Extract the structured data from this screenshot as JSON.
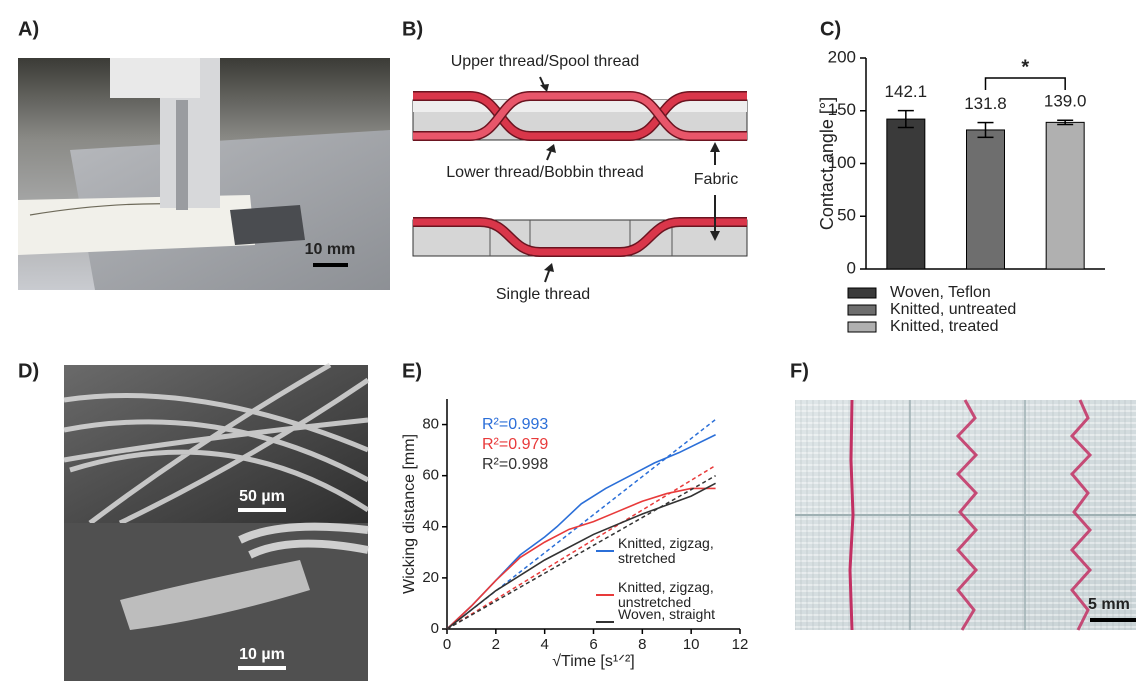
{
  "panel_labels": [
    "A)",
    "B)",
    "C)",
    "D)",
    "E)",
    "F)"
  ],
  "scale_bars": {
    "a": "10 mm",
    "d_top": "50 µm",
    "d_bottom": "10 µm",
    "f": "5 mm"
  },
  "diagram": {
    "upper": "Upper thread/Spool thread",
    "lower": "Lower thread/Bobbin thread",
    "fabric": "Fabric",
    "single": "Single thread"
  },
  "chart_data": [
    {
      "type": "bar",
      "ylabel": "Contact angle [°]",
      "categories": [
        "Woven, Teflon",
        "Knitted, untreated",
        "Knitted, treated"
      ],
      "values": [
        142.1,
        131.8,
        139.0
      ],
      "value_labels": [
        "142.1",
        "131.8",
        "139.0"
      ],
      "errors": [
        8,
        7,
        2
      ],
      "colors": [
        "#3a3a3a",
        "#6e6e6e",
        "#b0b0b0"
      ],
      "ylim": [
        0,
        200
      ],
      "yticks": [
        0,
        50,
        100,
        150,
        200
      ],
      "annotation": "*"
    },
    {
      "type": "line",
      "ylabel": "Wicking distance  [mm]",
      "xlabel": "√Time [s¹ᐟ²]",
      "xlim": [
        0,
        12
      ],
      "xticks": [
        0,
        2,
        4,
        6,
        8,
        10,
        12
      ],
      "ylim": [
        0,
        90
      ],
      "yticks": [
        0,
        20,
        40,
        60,
        80
      ],
      "series": [
        {
          "name": "Knitted, zigzag, stretched",
          "color": "#2b6fd8",
          "r2_label": "R²=0.993",
          "x": [
            0,
            1,
            2,
            3,
            4,
            4.5,
            5.5,
            6.5,
            7.5,
            8.5,
            9.5,
            11
          ],
          "values": [
            0,
            9,
            19,
            29,
            36,
            40,
            49,
            55,
            60,
            65,
            69,
            76
          ],
          "fit_x": [
            0,
            11
          ],
          "fit_values": [
            0,
            82
          ]
        },
        {
          "name": "Knitted, zigzag, unstretched",
          "color": "#e83a3a",
          "r2_label": "R²=0.979",
          "x": [
            0,
            1,
            2,
            3,
            4,
            5,
            6,
            7,
            8,
            9,
            10,
            11
          ],
          "values": [
            0,
            9,
            19,
            28,
            34,
            39,
            42,
            46,
            50,
            53,
            55,
            55
          ],
          "fit_x": [
            0,
            11
          ],
          "fit_values": [
            0,
            64
          ]
        },
        {
          "name": "Woven, straight",
          "color": "#333333",
          "r2_label": "R²=0.998",
          "x": [
            0,
            2,
            4,
            6,
            8,
            10,
            11
          ],
          "values": [
            0,
            15,
            27,
            37,
            45,
            52,
            57
          ],
          "fit_x": [
            0,
            11
          ],
          "fit_values": [
            0,
            60
          ]
        }
      ]
    }
  ]
}
